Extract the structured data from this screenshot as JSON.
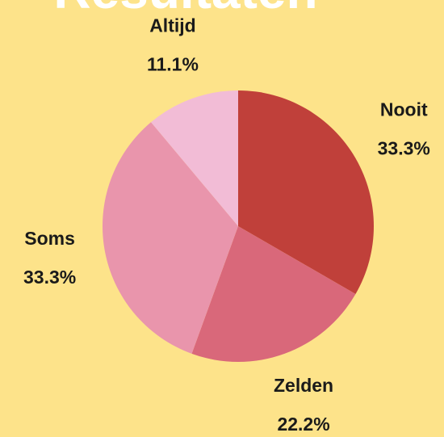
{
  "chart_data": {
    "type": "pie",
    "title": "Resultaten",
    "categories": [
      "Nooit",
      "Zelden",
      "Soms",
      "Altijd"
    ],
    "values": [
      33.3,
      22.2,
      33.3,
      11.1
    ],
    "value_labels": [
      "33.3%",
      "22.2%",
      "33.3%",
      "11.1%"
    ],
    "colors": [
      "#c0403a",
      "#d9687a",
      "#e995ac",
      "#f2bcd6"
    ]
  }
}
